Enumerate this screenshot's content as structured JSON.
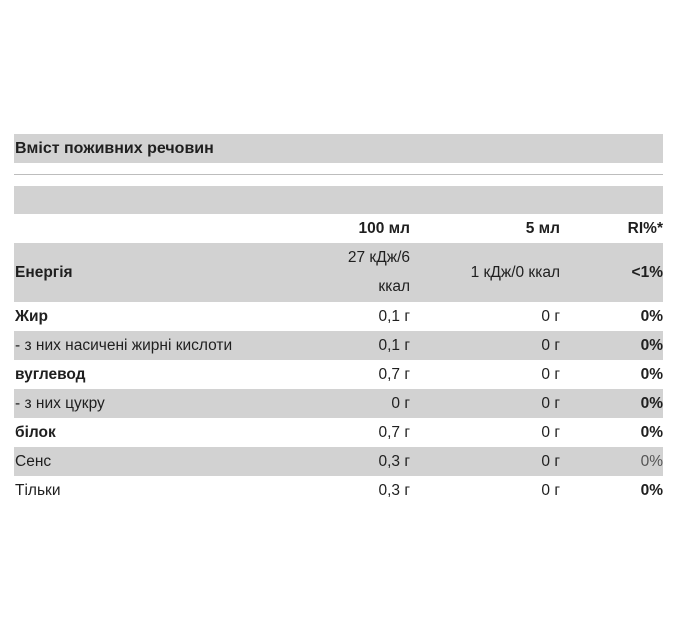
{
  "header": {
    "title": "Вміст поживних речовин"
  },
  "table": {
    "columns": [
      "100 мл",
      "5 мл",
      "RI%*"
    ],
    "rows": [
      [
        "Енергія",
        "27 кДж/6 ккал",
        "1 кДж/0 ккал",
        "<1%"
      ],
      [
        "Жир",
        "0,1 г",
        "0 г",
        "0%"
      ],
      [
        "- з них насичені жирні кислоти",
        "0,1 г",
        "0 г",
        "0%"
      ],
      [
        "вуглевод",
        "0,7 г",
        "0 г",
        "0%"
      ],
      [
        "- з них цукру",
        "0 г",
        "0 г",
        "0%"
      ],
      [
        "білок",
        "0,7 г",
        "0 г",
        "0%"
      ],
      [
        "Сенс",
        "0,3 г",
        "0 г",
        "0%"
      ],
      [
        "Тільки",
        "0,3 г",
        "0 г",
        "0%"
      ]
    ]
  }
}
